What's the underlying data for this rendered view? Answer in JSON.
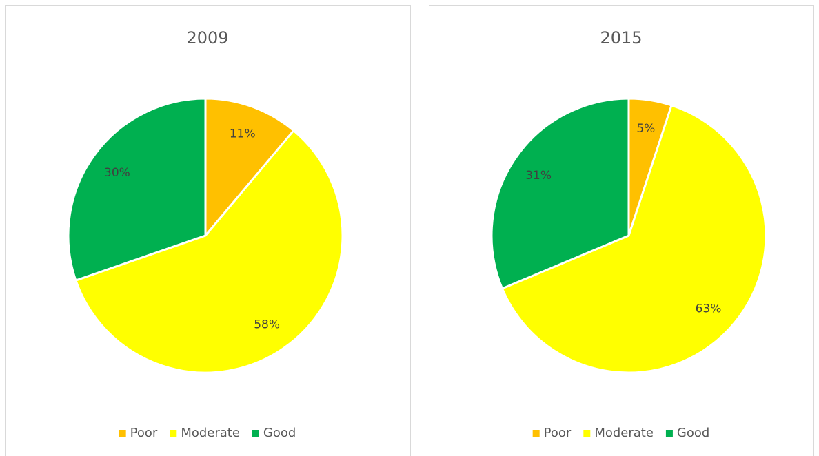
{
  "chart_data": [
    {
      "type": "pie",
      "title": "2009",
      "categories": [
        "Poor",
        "Moderate",
        "Good"
      ],
      "values": [
        11,
        58,
        30
      ],
      "value_labels": [
        "11%",
        "58%",
        "30%"
      ],
      "colors": [
        "#ffc000",
        "#ffff00",
        "#00b050"
      ],
      "legend": "bottom"
    },
    {
      "type": "pie",
      "title": "2015",
      "categories": [
        "Poor",
        "Moderate",
        "Good"
      ],
      "values": [
        5,
        63,
        31
      ],
      "value_labels": [
        "5%",
        "63%",
        "31%"
      ],
      "colors": [
        "#ffc000",
        "#ffff00",
        "#00b050"
      ],
      "legend": "bottom"
    }
  ]
}
